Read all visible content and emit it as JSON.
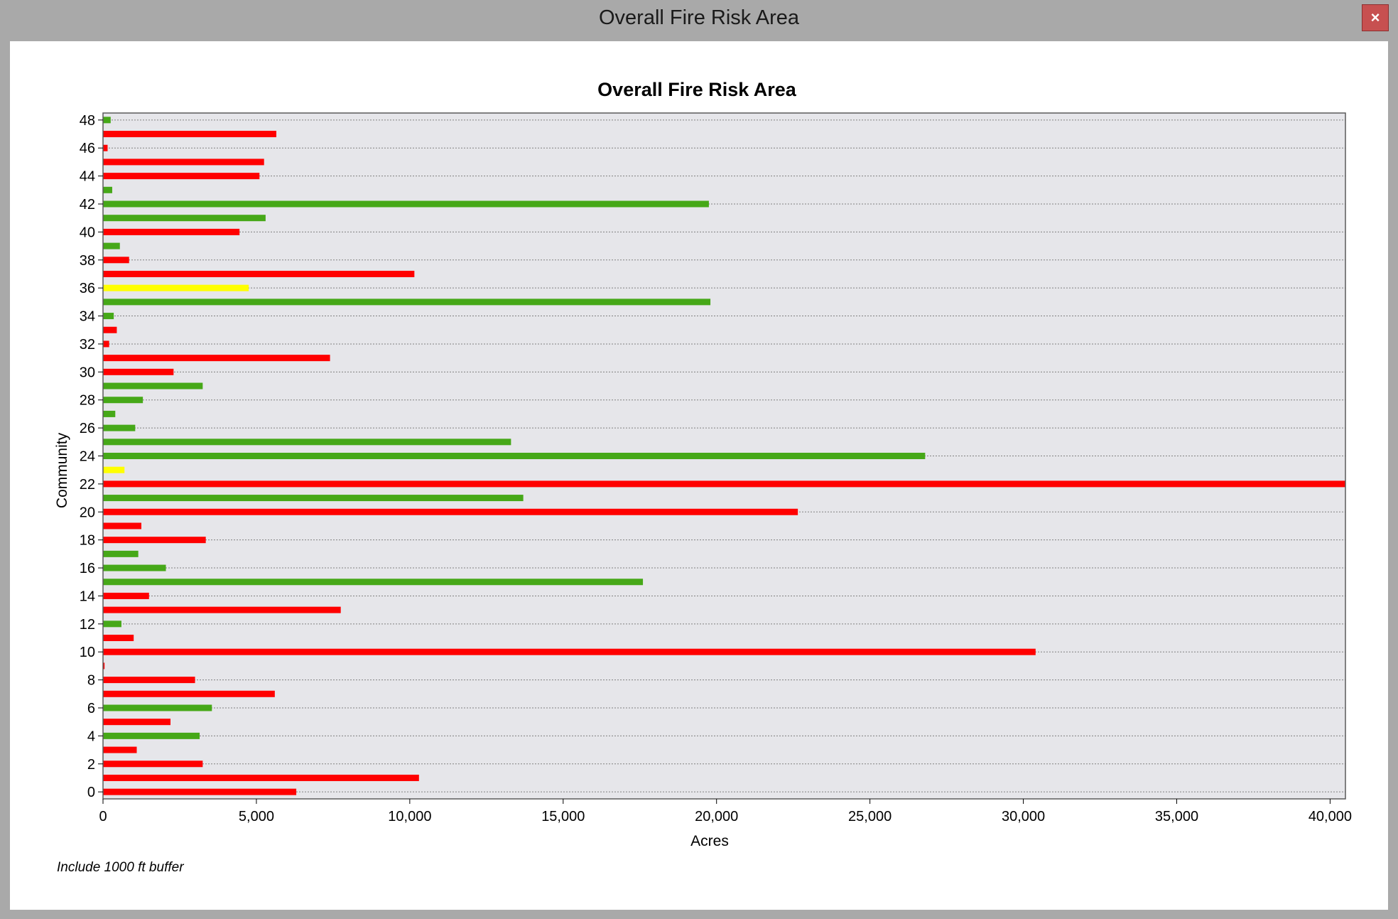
{
  "window": {
    "title": "Overall Fire Risk Area",
    "close_label": "×"
  },
  "colors": {
    "red": "#ff0000",
    "green": "#46a818",
    "yellow": "#ffff00",
    "plot_background": "#e6e6ea"
  },
  "chart_data": {
    "type": "bar",
    "orientation": "horizontal",
    "title": "Overall Fire Risk Area",
    "xlabel": "Acres",
    "ylabel": "Community",
    "xlim": [
      0,
      40500
    ],
    "ylim": [
      -0.5,
      48.5
    ],
    "x_ticks": [
      0,
      5000,
      10000,
      15000,
      20000,
      25000,
      30000,
      35000,
      40000
    ],
    "x_tick_labels": [
      "0",
      "5,000",
      "10,000",
      "15,000",
      "20,000",
      "25,000",
      "30,000",
      "35,000",
      "40,000"
    ],
    "y_ticks": [
      0,
      2,
      4,
      6,
      8,
      10,
      12,
      14,
      16,
      18,
      20,
      22,
      24,
      26,
      28,
      30,
      32,
      34,
      36,
      38,
      40,
      42,
      44,
      46,
      48
    ],
    "grid": "horizontal dotted",
    "legend": "none",
    "annotation": "Include 1000 ft buffer",
    "categories": [
      0,
      1,
      2,
      3,
      4,
      5,
      6,
      7,
      8,
      9,
      10,
      11,
      12,
      13,
      14,
      15,
      16,
      17,
      18,
      19,
      20,
      21,
      22,
      23,
      24,
      25,
      26,
      27,
      28,
      29,
      30,
      31,
      32,
      33,
      34,
      35,
      36,
      37,
      38,
      39,
      40,
      41,
      42,
      43,
      44,
      45,
      46,
      47,
      48
    ],
    "values": [
      6300,
      10300,
      3250,
      1100,
      3150,
      2200,
      3550,
      5600,
      3000,
      50,
      30400,
      1000,
      600,
      7750,
      1500,
      17600,
      2050,
      1150,
      3350,
      1250,
      22650,
      13700,
      40500,
      700,
      26800,
      13300,
      1050,
      400,
      1300,
      3250,
      2300,
      7400,
      200,
      450,
      350,
      19800,
      4750,
      10150,
      850,
      550,
      4450,
      5300,
      19750,
      300,
      5100,
      5250,
      150,
      5650,
      250
    ],
    "bar_colors": [
      "red",
      "red",
      "red",
      "red",
      "green",
      "red",
      "green",
      "red",
      "red",
      "red",
      "red",
      "red",
      "green",
      "red",
      "red",
      "green",
      "green",
      "green",
      "red",
      "red",
      "red",
      "green",
      "red",
      "yellow",
      "green",
      "green",
      "green",
      "green",
      "green",
      "green",
      "red",
      "red",
      "red",
      "red",
      "green",
      "green",
      "yellow",
      "red",
      "red",
      "green",
      "red",
      "green",
      "green",
      "green",
      "red",
      "red",
      "red",
      "red",
      "green"
    ]
  }
}
